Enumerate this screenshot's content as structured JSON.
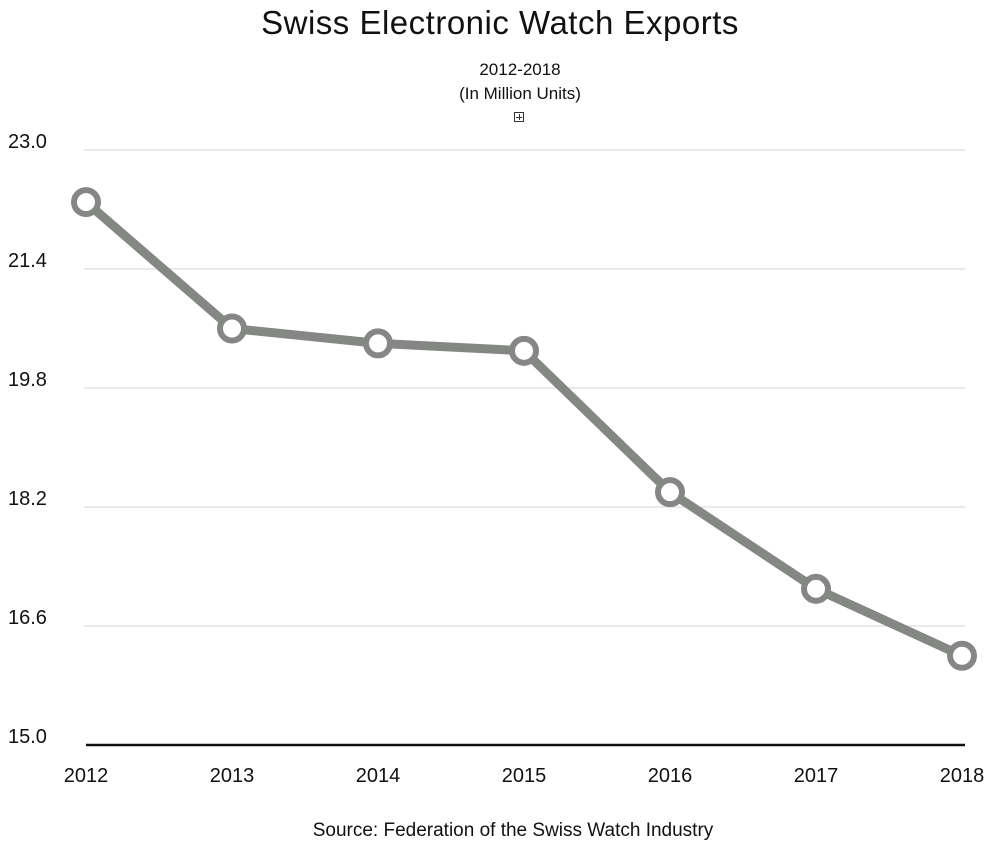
{
  "chart_data": {
    "type": "line",
    "title": "Swiss Electronic Watch Exports",
    "subtitle_lines": [
      "2012-2018",
      "(In Million Units)"
    ],
    "source": "Source: Federation of the Swiss Watch Industry",
    "x": [
      "2012",
      "2013",
      "2014",
      "2015",
      "2016",
      "2017",
      "2018"
    ],
    "series": [
      {
        "values": [
          22.3,
          20.6,
          20.4,
          20.3,
          18.4,
          17.1,
          16.2
        ]
      }
    ],
    "y_ticks": [
      "15.0",
      "16.6",
      "18.2",
      "19.8",
      "21.4",
      "23.0"
    ],
    "ylim": [
      15.0,
      23.0
    ],
    "grid": true,
    "colors": {
      "line": "#848784",
      "grid": "#d4d4d4",
      "axis": "#111111"
    }
  }
}
